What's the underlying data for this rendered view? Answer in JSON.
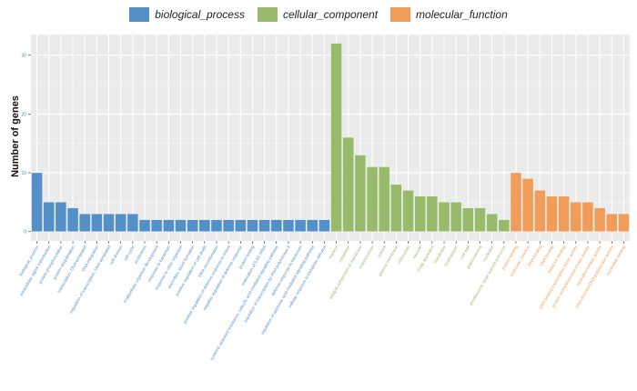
{
  "chart_data": {
    "type": "bar",
    "title": "",
    "xlabel": "",
    "ylabel": "Number of genes",
    "ylim": [
      -1.6,
      33.5
    ],
    "yticks": [
      0,
      10,
      20,
      30
    ],
    "grid": true,
    "legend_position": "top",
    "colors": {
      "biological_process": "#5490C8",
      "cellular_component": "#97BB6B",
      "molecular_function": "#F19D59"
    },
    "legend": [
      "biological_process",
      "cellular_component",
      "molecular_function"
    ],
    "bars": [
      {
        "label": "biological_process",
        "value": 10,
        "group": "biological_process"
      },
      {
        "label": "intracellular signal transduction",
        "value": 5,
        "group": "biological_process"
      },
      {
        "label": "protein phosphorylation",
        "value": 5,
        "group": "biological_process"
      },
      {
        "label": "protein ubiquitination",
        "value": 4,
        "group": "biological_process"
      },
      {
        "label": "transcription, DNA-templated",
        "value": 3,
        "group": "biological_process"
      },
      {
        "label": "DNA integration",
        "value": 3,
        "group": "biological_process"
      },
      {
        "label": "regulation of transcription, DNA-templated",
        "value": 3,
        "group": "biological_process"
      },
      {
        "label": "cell division",
        "value": 3,
        "group": "biological_process"
      },
      {
        "label": "cell cycle",
        "value": 3,
        "group": "biological_process"
      },
      {
        "label": "proteolysis",
        "value": 2,
        "group": "biological_process"
      },
      {
        "label": "multicellular organism development",
        "value": 2,
        "group": "biological_process"
      },
      {
        "label": "response to bacterium",
        "value": 2,
        "group": "biological_process"
      },
      {
        "label": "response to other organism",
        "value": 2,
        "group": "biological_process"
      },
      {
        "label": "secondary shoot formation",
        "value": 2,
        "group": "biological_process"
      },
      {
        "label": "positive regulation of cell death",
        "value": 2,
        "group": "biological_process"
      },
      {
        "label": "DNA recombination",
        "value": 2,
        "group": "biological_process"
      },
      {
        "label": "positive regulation of defense response to insect",
        "value": 2,
        "group": "biological_process"
      },
      {
        "label": "negative regulation of defense response",
        "value": 2,
        "group": "biological_process"
      },
      {
        "label": "protein folding",
        "value": 2,
        "group": "biological_process"
      },
      {
        "label": "maturation of 5.8S rRNA",
        "value": 2,
        "group": "biological_process"
      },
      {
        "label": "systemic acquired resistance, salicylic acid mediated signaling pathway",
        "value": 2,
        "group": "biological_process"
      },
      {
        "label": "regulation of transcription by RNA polymerase II",
        "value": 2,
        "group": "biological_process"
      },
      {
        "label": "defense response to bacterium",
        "value": 2,
        "group": "biological_process"
      },
      {
        "label": "regulation of jasmonic acid mediated signaling pathway",
        "value": 2,
        "group": "biological_process"
      },
      {
        "label": "cellular response to trehalose stimulus",
        "value": 2,
        "group": "biological_process"
      },
      {
        "label": "nucleus",
        "value": 32,
        "group": "cellular_component"
      },
      {
        "label": "cytoplasm",
        "value": 16,
        "group": "cellular_component"
      },
      {
        "label": "integral component of membrane",
        "value": 13,
        "group": "cellular_component"
      },
      {
        "label": "mitochondrion",
        "value": 11,
        "group": "cellular_component"
      },
      {
        "label": "cytosol",
        "value": 11,
        "group": "cellular_component"
      },
      {
        "label": "plasma membrane",
        "value": 8,
        "group": "cellular_component"
      },
      {
        "label": "chloroplast",
        "value": 7,
        "group": "cellular_component"
      },
      {
        "label": "vacuole",
        "value": 6,
        "group": "cellular_component"
      },
      {
        "label": "Golgi apparatus",
        "value": 6,
        "group": "cellular_component"
      },
      {
        "label": "membrane",
        "value": 5,
        "group": "cellular_component"
      },
      {
        "label": "nucleoplasm",
        "value": 5,
        "group": "cellular_component"
      },
      {
        "label": "cell wall",
        "value": 4,
        "group": "cellular_component"
      },
      {
        "label": "plasmodesma",
        "value": 4,
        "group": "cellular_component"
      },
      {
        "label": "nucleolus",
        "value": 3,
        "group": "cellular_component"
      },
      {
        "label": "preribosome, large subunit precursor",
        "value": 2,
        "group": "cellular_component"
      },
      {
        "label": "protein binding",
        "value": 10,
        "group": "molecular_function"
      },
      {
        "label": "molecular_function",
        "value": 9,
        "group": "molecular_function"
      },
      {
        "label": "RNA binding",
        "value": 7,
        "group": "molecular_function"
      },
      {
        "label": "DNA binding",
        "value": 6,
        "group": "molecular_function"
      },
      {
        "label": "metal ion binding",
        "value": 6,
        "group": "molecular_function"
      },
      {
        "label": "DNA binding transcription factor activity",
        "value": 5,
        "group": "molecular_function"
      },
      {
        "label": "protein serine/threonine kinase activity",
        "value": 5,
        "group": "molecular_function"
      },
      {
        "label": "beta-glucosidase activity",
        "value": 4,
        "group": "molecular_function"
      },
      {
        "label": "RNA-directed DNA polymerase activity",
        "value": 3,
        "group": "molecular_function"
      },
      {
        "label": "nucleotide binding",
        "value": 3,
        "group": "molecular_function"
      }
    ]
  }
}
